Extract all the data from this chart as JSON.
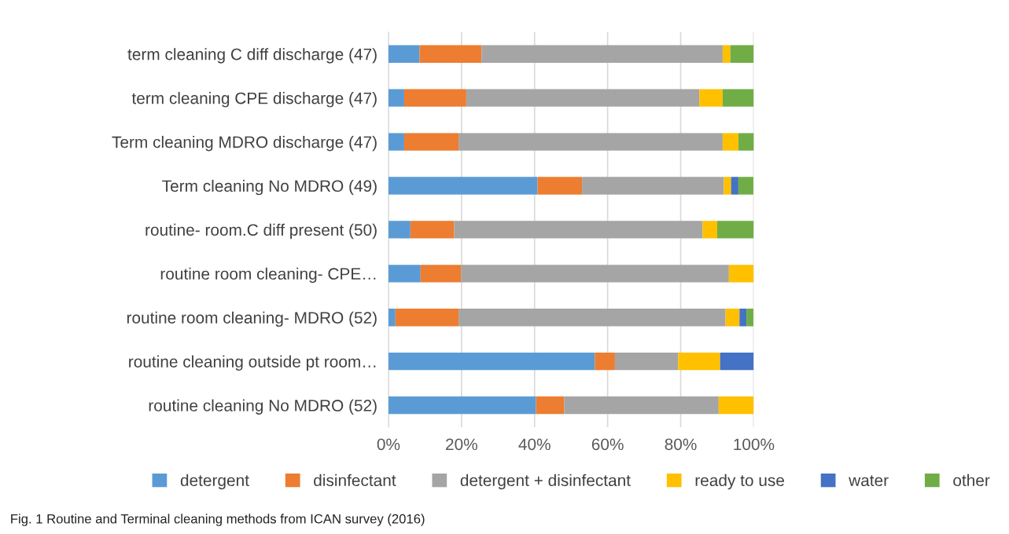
{
  "chart_data": {
    "type": "bar",
    "orientation": "horizontal",
    "stacked": true,
    "categories": [
      "term cleaning C diff discharge (47)",
      "term cleaning CPE discharge (47)",
      "Term cleaning MDRO discharge (47)",
      "Term cleaning No MDRO (49)",
      "routine- room.C diff present (50)",
      "routine room cleaning- CPE…",
      "routine room cleaning- MDRO (52)",
      "routine cleaning outside pt room…",
      "routine cleaning No MDRO (52)"
    ],
    "series": [
      {
        "name": "detergent",
        "color": "#5b9bd5",
        "values": [
          8.5,
          4.3,
          4.3,
          40.8,
          6,
          8.8,
          1.9,
          56.5,
          40.4
        ]
      },
      {
        "name": "disinfectant",
        "color": "#ed7d31",
        "values": [
          17.0,
          17.0,
          14.9,
          12.2,
          12,
          11.1,
          17.3,
          5.5,
          7.7
        ]
      },
      {
        "name": "detergent + disinfectant",
        "color": "#a5a5a5",
        "values": [
          66.0,
          63.8,
          72.3,
          38.8,
          68,
          73.3,
          73.1,
          17.3,
          42.3
        ]
      },
      {
        "name": "ready to use",
        "color": "#ffc000",
        "values": [
          2.1,
          6.4,
          4.3,
          2.0,
          4,
          6.8,
          3.8,
          11.5,
          9.6
        ]
      },
      {
        "name": "water",
        "color": "#4472c4",
        "values": [
          0,
          0,
          0,
          2.0,
          0,
          0,
          1.9,
          9.2,
          0
        ]
      },
      {
        "name": "other",
        "color": "#70ad47",
        "values": [
          6.4,
          8.5,
          4.3,
          4.1,
          10,
          0,
          1.9,
          0,
          0
        ]
      }
    ],
    "xlim": [
      0,
      100
    ],
    "xticks": [
      {
        "value": 0,
        "label": "0%"
      },
      {
        "value": 20,
        "label": "20%"
      },
      {
        "value": 40,
        "label": "40%"
      },
      {
        "value": 60,
        "label": "60%"
      },
      {
        "value": 80,
        "label": "80%"
      },
      {
        "value": 100,
        "label": "100%"
      }
    ],
    "grid": "x",
    "legend": "bottom",
    "annotations": [
      "Fig. 1 Routine and Terminal cleaning methods from ICAN survey (2016)"
    ]
  }
}
